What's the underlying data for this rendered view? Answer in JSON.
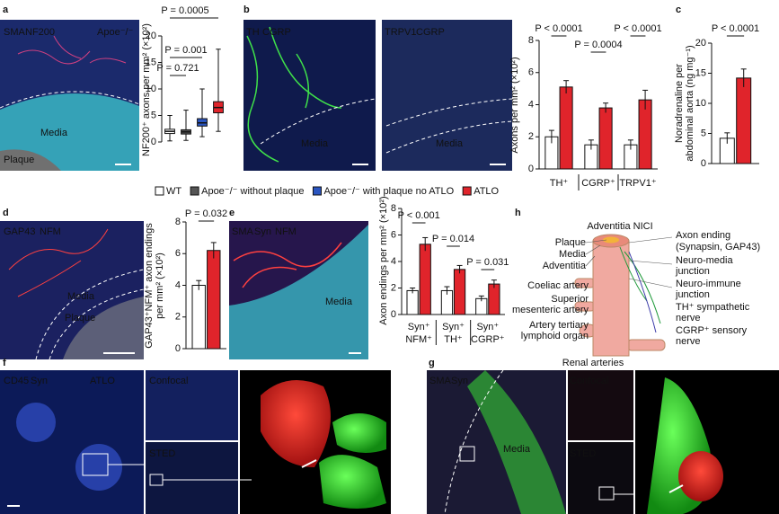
{
  "figure": {
    "panel_letters": [
      "a",
      "b",
      "c",
      "d",
      "e",
      "f",
      "g",
      "h"
    ]
  },
  "images": [
    {
      "labels": [
        {
          "text": "SMA",
          "color": "#3ed6e8"
        },
        {
          "text": "NF200",
          "color": "#ff5050"
        },
        {
          "text": "Apoe⁻/⁻",
          "color": "#ffffff"
        },
        {
          "text": "Media",
          "color": "#ffffff"
        },
        {
          "text": "Plaque",
          "color": "#ffffff"
        }
      ]
    },
    {
      "labels": [
        {
          "text": "TH",
          "color": "#3fe04a"
        },
        {
          "text": "CGRP",
          "color": "#ff5050"
        },
        {
          "text": "Media",
          "color": "#ffffff"
        }
      ]
    },
    {
      "labels": [
        {
          "text": "TRPV1",
          "color": "#3ed6e8"
        },
        {
          "text": "CGRP",
          "color": "#ff5050"
        },
        {
          "text": "Media",
          "color": "#ffffff"
        }
      ]
    },
    {
      "labels": [
        {
          "text": "GAP43",
          "color": "#3fe04a"
        },
        {
          "text": "NFM",
          "color": "#ff5050"
        },
        {
          "text": "Media",
          "color": "#ffffff"
        },
        {
          "text": "Plaque",
          "color": "#ffffff"
        }
      ]
    },
    {
      "labels": [
        {
          "text": "SMA",
          "color": "#3ed6e8"
        },
        {
          "text": "Syn",
          "color": "#3fe04a"
        },
        {
          "text": "NFM",
          "color": "#ff5050"
        },
        {
          "text": "Media",
          "color": "#ffffff"
        }
      ]
    },
    {
      "labels": [
        {
          "text": "CD45",
          "color": "#3fe04a"
        },
        {
          "text": "Syn",
          "color": "#ff5050"
        },
        {
          "text": "ATLO",
          "color": "#ffffff"
        },
        {
          "text": "Confocal",
          "color": "#ffffff"
        },
        {
          "text": "STED",
          "color": "#ffffff"
        }
      ]
    },
    {
      "labels": [
        {
          "text": "SMA",
          "color": "#3fe04a"
        },
        {
          "text": "Syn",
          "color": "#ff5050"
        },
        {
          "text": "Media",
          "color": "#ffffff"
        },
        {
          "text": "Confocal",
          "color": "#ffffff"
        },
        {
          "text": "STED",
          "color": "#ffffff"
        }
      ]
    }
  ],
  "chart_data": [
    {
      "type": "box",
      "y_label": [
        "NF200⁺ axons per mm² (×10²)"
      ],
      "ylim": [
        0,
        20
      ],
      "yticks": [
        0,
        5,
        10,
        15,
        20
      ],
      "series": [
        {
          "name": "WT",
          "color": "#ffffff",
          "min": 0.2,
          "q1": 1.6,
          "median": 2.0,
          "q3": 2.4,
          "max": 5
        },
        {
          "name": "Apoe⁻/⁻ without plaque",
          "color": "#555555",
          "min": 0.3,
          "q1": 1.5,
          "median": 1.9,
          "q3": 2.3,
          "max": 6
        },
        {
          "name": "Apoe⁻/⁻ with plaque no ATLO",
          "color": "#2a55c0",
          "min": 1,
          "q1": 3,
          "median": 3.6,
          "q3": 4.4,
          "max": 10
        },
        {
          "name": "ATLO",
          "color": "#e0242b",
          "min": 2,
          "q1": 5.5,
          "median": 6.5,
          "q3": 7.6,
          "max": 17.5
        }
      ],
      "annotations": [
        "P = 0.721",
        "P = 0.001",
        "P = 0.0005"
      ]
    },
    {
      "type": "bar",
      "y_label": [
        "Axons per mm² (×10²)"
      ],
      "ylim": [
        0,
        8
      ],
      "yticks": [
        0,
        2,
        4,
        6,
        8
      ],
      "categories": [
        "TH⁺",
        "CGRP⁺",
        "TRPV1⁺"
      ],
      "series": [
        {
          "color": "#ffffff",
          "values": [
            2.0,
            1.5,
            1.5
          ],
          "errors": [
            0.4,
            0.3,
            0.3
          ]
        },
        {
          "color": "#e0242b",
          "values": [
            5.1,
            3.8,
            4.3
          ],
          "errors": [
            0.4,
            0.3,
            0.6
          ]
        }
      ],
      "annotations": [
        "P < 0.0001",
        "P = 0.0004",
        "P < 0.0001"
      ]
    },
    {
      "type": "bar",
      "y_label": [
        "Noradrenaline per",
        "abdominal aorta (ng mg⁻¹)"
      ],
      "ylim": [
        0,
        20
      ],
      "yticks": [
        0,
        5,
        10,
        15,
        20
      ],
      "series": [
        {
          "color": "#ffffff",
          "values": [
            4.2
          ],
          "errors": [
            0.9
          ]
        },
        {
          "color": "#e0242b",
          "values": [
            14.2
          ],
          "errors": [
            1.5
          ]
        }
      ],
      "annotations": [
        "P < 0.0001"
      ]
    },
    {
      "type": "bar",
      "y_label": [
        "GAP43⁺NFM⁺ axon endings",
        "per mm² (×10²)"
      ],
      "ylim": [
        0,
        8
      ],
      "yticks": [
        0,
        2,
        4,
        6,
        8
      ],
      "series": [
        {
          "color": "#ffffff",
          "values": [
            4.0
          ],
          "errors": [
            0.3
          ]
        },
        {
          "color": "#e0242b",
          "values": [
            6.2
          ],
          "errors": [
            0.5
          ]
        }
      ],
      "annotations": [
        "P = 0.032"
      ]
    },
    {
      "type": "bar",
      "y_label": [
        "Axon endings per mm² (×10²)"
      ],
      "ylim": [
        0,
        8
      ],
      "yticks": [
        0,
        2,
        4,
        6,
        8
      ],
      "categories": [
        [
          "Syn⁺",
          "NFM⁺"
        ],
        [
          "Syn⁺",
          "TH⁺"
        ],
        [
          "Syn⁺",
          "CGRP⁺"
        ]
      ],
      "series": [
        {
          "color": "#ffffff",
          "values": [
            1.8,
            1.8,
            1.2
          ],
          "errors": [
            0.2,
            0.3,
            0.2
          ]
        },
        {
          "color": "#e0242b",
          "values": [
            5.3,
            3.4,
            2.3
          ],
          "errors": [
            0.5,
            0.3,
            0.3
          ]
        }
      ],
      "annotations": [
        "P < 0.001",
        "P = 0.014",
        "P = 0.031"
      ]
    }
  ],
  "diagram": {
    "title": "Adventitia NICI",
    "labels": [
      {
        "lines": [
          "Plaque"
        ],
        "color": "#111111"
      },
      {
        "lines": [
          "Media"
        ],
        "color": "#111111"
      },
      {
        "lines": [
          "Adventitia"
        ],
        "color": "#111111"
      },
      {
        "lines": [
          "Coeliac artery"
        ],
        "color": "#111111"
      },
      {
        "lines": [
          "Superior",
          "mesenteric artery"
        ],
        "color": "#111111"
      },
      {
        "lines": [
          "Artery tertiary",
          "lymphoid organ"
        ],
        "color": "#111111"
      },
      {
        "lines": [
          "Renal arteries"
        ],
        "color": "#111111"
      },
      {
        "lines": [
          "Axon ending"
        ],
        "color": "#111111"
      },
      {
        "lines": [
          "(Synapsin, GAP43)"
        ],
        "color": "#2a8fd0"
      },
      {
        "lines": [
          "Neuro-media",
          "junction"
        ],
        "color": "#111111"
      },
      {
        "lines": [
          "Neuro-immune",
          "junction"
        ],
        "color": "#111111"
      },
      {
        "lines": [
          "TH⁺ sympathetic",
          "nerve"
        ],
        "color": "#1f9a3a"
      },
      {
        "lines": [
          "CGRP⁺ sensory",
          "nerve"
        ],
        "color": "#3a3aa8"
      }
    ]
  }
}
